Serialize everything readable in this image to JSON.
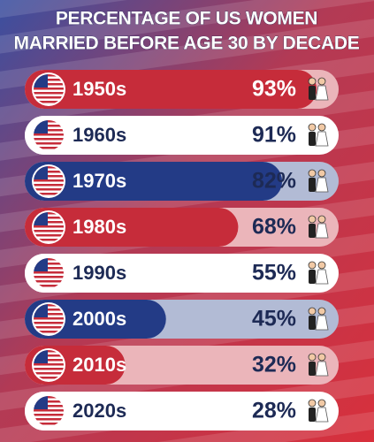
{
  "chart_data": {
    "type": "bar",
    "title": [
      "PERCENTAGE OF US WOMEN",
      "MARRIED BEFORE AGE 30 BY DECADE"
    ],
    "categories": [
      "1950s",
      "1960s",
      "1970s",
      "1980s",
      "1990s",
      "2000s",
      "2010s",
      "2020s"
    ],
    "values": [
      93,
      91,
      82,
      68,
      55,
      45,
      32,
      28
    ],
    "value_labels": [
      "93%",
      "91%",
      "82%",
      "68%",
      "55%",
      "45%",
      "32%",
      "28%"
    ],
    "colors": [
      "#c62c3a",
      "#ffffff",
      "#233b86",
      "#c62c3a",
      "#ffffff",
      "#233b86",
      "#c62c3a",
      "#ffffff"
    ],
    "xlim": [
      0,
      100
    ]
  }
}
